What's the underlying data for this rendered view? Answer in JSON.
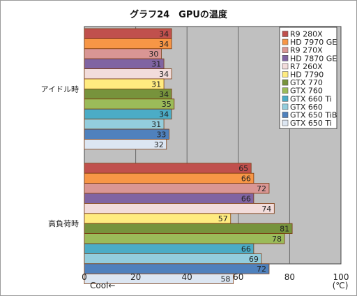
{
  "chart_data": {
    "type": "bar",
    "orientation": "horizontal",
    "title": "グラフ24　GPUの温度",
    "unit_label": "(℃)",
    "direction_note": "Cool←",
    "xlim": [
      0,
      100
    ],
    "xticks": [
      0,
      20,
      40,
      60,
      80,
      100
    ],
    "grid": true,
    "legend_position": "top-right",
    "groups": [
      {
        "label": "アイドル時",
        "values": [
          34,
          34,
          30,
          31,
          34,
          31,
          34,
          35,
          34,
          31,
          33,
          32
        ]
      },
      {
        "label": "高負荷時",
        "values": [
          65,
          66,
          72,
          66,
          74,
          57,
          81,
          78,
          66,
          69,
          72,
          58
        ]
      }
    ],
    "series": [
      {
        "name": "R9 280X",
        "color": "#c0504d"
      },
      {
        "name": "HD 7970 GE",
        "color": "#f79646"
      },
      {
        "name": "R9 270X",
        "color": "#d99694"
      },
      {
        "name": "HD 7870 GE",
        "color": "#8064a2"
      },
      {
        "name": "R7 260X",
        "color": "#f2dcdb"
      },
      {
        "name": "HD 7790",
        "color": "#ffeb80"
      },
      {
        "name": "GTX 770",
        "color": "#77933c"
      },
      {
        "name": "GTX 760",
        "color": "#9bbb59"
      },
      {
        "name": "GTX 660 Ti",
        "color": "#4bacc6"
      },
      {
        "name": "GTX 660",
        "color": "#93cddd"
      },
      {
        "name": "GTX 650 TiB",
        "color": "#4f81bd"
      },
      {
        "name": "GTX 650 Ti",
        "color": "#dce6f2"
      }
    ]
  }
}
